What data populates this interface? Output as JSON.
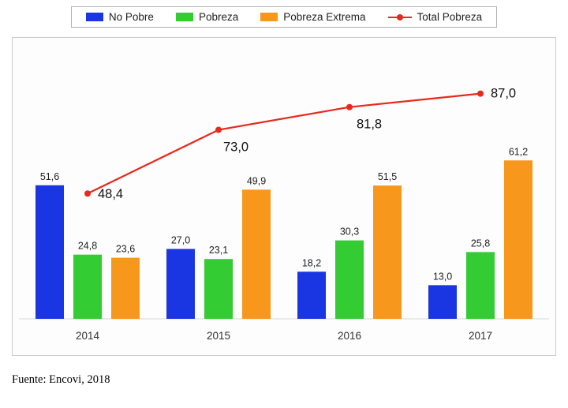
{
  "source": "Fuente: Encovi, 2018",
  "chart_data": {
    "type": "bar",
    "subtype": "grouped-bars-with-line-overlay",
    "categories": [
      "2014",
      "2015",
      "2016",
      "2017"
    ],
    "series": [
      {
        "name": "No Pobre",
        "type": "bar",
        "color": "#1a36e2",
        "values": [
          51.6,
          27.0,
          18.2,
          13.0
        ],
        "labels": [
          "51,6",
          "27,0",
          "18,2",
          "13,0"
        ]
      },
      {
        "name": "Pobreza",
        "type": "bar",
        "color": "#33cc33",
        "values": [
          24.8,
          23.1,
          30.3,
          25.8
        ],
        "labels": [
          "24,8",
          "23,1",
          "30,3",
          "25,8"
        ]
      },
      {
        "name": "Pobreza Extrema",
        "type": "bar",
        "color": "#f7981c",
        "values": [
          23.6,
          49.9,
          51.5,
          61.2
        ],
        "labels": [
          "23,6",
          "49,9",
          "51,5",
          "61,2"
        ]
      },
      {
        "name": "Total Pobreza",
        "type": "line",
        "color": "#e8291c",
        "values": [
          48.4,
          73.0,
          81.8,
          87.0
        ],
        "labels": [
          "48,4",
          "73,0",
          "81,8",
          "87,0"
        ]
      }
    ],
    "title": "",
    "xlabel": "",
    "ylabel": "",
    "ylim": [
      0,
      100
    ],
    "grid": false,
    "legend_position": "top",
    "decimal_separator": ","
  }
}
